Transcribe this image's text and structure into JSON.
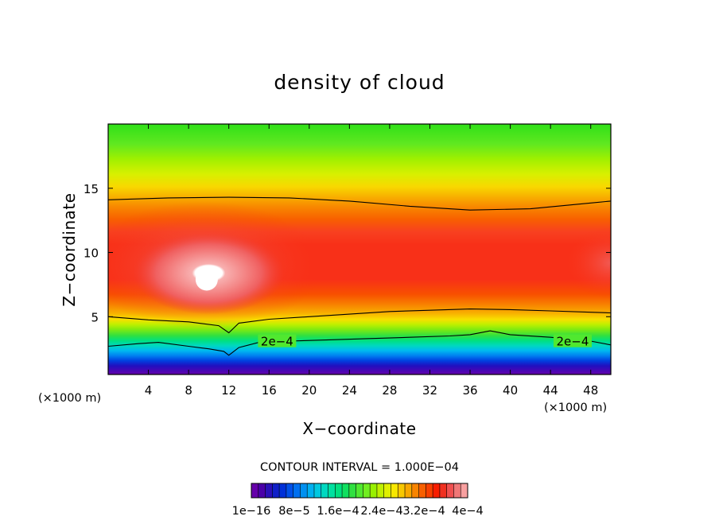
{
  "chart_data": {
    "type": "heatmap",
    "title": "density of cloud",
    "xlabel": "X−coordinate",
    "ylabel": "Z−coordinate",
    "x_unit_left": "(×1000 m)",
    "x_unit_right": "(×1000 m)",
    "xlim": [
      0,
      50
    ],
    "ylim": [
      0.5,
      20
    ],
    "x_ticks": [
      4,
      8,
      12,
      16,
      20,
      24,
      28,
      32,
      36,
      40,
      44,
      48
    ],
    "y_ticks": [
      5,
      10,
      15
    ],
    "contour_interval_text": "CONTOUR INTERVAL = 1.000E−04",
    "contour_label": "2e−4",
    "contour_label_positions": [
      [
        16.8,
        3.0
      ],
      [
        46.2,
        3.0
      ]
    ],
    "contours": [
      {
        "level": 0.0002,
        "points": [
          [
            0,
            14.1
          ],
          [
            6,
            14.25
          ],
          [
            12,
            14.3
          ],
          [
            18,
            14.25
          ],
          [
            24,
            14.0
          ],
          [
            30,
            13.6
          ],
          [
            36,
            13.3
          ],
          [
            42,
            13.4
          ],
          [
            48,
            13.85
          ],
          [
            50,
            14.0
          ]
        ]
      },
      {
        "level": 0.0003,
        "points": [
          [
            0,
            5.0
          ],
          [
            4,
            4.75
          ],
          [
            8,
            4.6
          ],
          [
            11,
            4.3
          ],
          [
            12,
            3.75
          ],
          [
            13,
            4.5
          ],
          [
            16,
            4.8
          ],
          [
            20,
            5.0
          ],
          [
            24,
            5.2
          ],
          [
            28,
            5.4
          ],
          [
            32,
            5.5
          ],
          [
            36,
            5.6
          ],
          [
            40,
            5.55
          ],
          [
            44,
            5.45
          ],
          [
            48,
            5.35
          ],
          [
            50,
            5.3
          ]
        ]
      },
      {
        "level": 0.0002,
        "points": [
          [
            0,
            2.7
          ],
          [
            3,
            2.9
          ],
          [
            5,
            3.0
          ],
          [
            8,
            2.7
          ],
          [
            10,
            2.5
          ],
          [
            11.5,
            2.3
          ],
          [
            12,
            2.0
          ],
          [
            13,
            2.6
          ],
          [
            15,
            3.0
          ],
          [
            18,
            3.1
          ],
          [
            22,
            3.2
          ],
          [
            26,
            3.3
          ],
          [
            30,
            3.4
          ],
          [
            34,
            3.5
          ],
          [
            36,
            3.6
          ],
          [
            38,
            3.9
          ],
          [
            40,
            3.6
          ],
          [
            44,
            3.4
          ],
          [
            48,
            3.1
          ],
          [
            50,
            2.8
          ]
        ]
      }
    ],
    "colorbar": {
      "colors": [
        "#6600aa",
        "#4a00a8",
        "#2a10b8",
        "#1020c8",
        "#0030d8",
        "#0050e8",
        "#0070f0",
        "#0090f0",
        "#00b0f0",
        "#00c8e0",
        "#00d8c0",
        "#00e0a0",
        "#00e080",
        "#10e060",
        "#30e040",
        "#50e830",
        "#70ee20",
        "#98f000",
        "#c0f000",
        "#e0f000",
        "#f8e800",
        "#f8c800",
        "#f8a800",
        "#f88400",
        "#f86000",
        "#f84000",
        "#f81e00",
        "#f03020",
        "#f05050",
        "#f07878",
        "#f8a0a0"
      ],
      "labels": [
        "1e−16",
        "8e−5",
        "1.6e−4",
        "2.4e−4",
        "3.2e−4",
        "4e−4"
      ]
    }
  }
}
